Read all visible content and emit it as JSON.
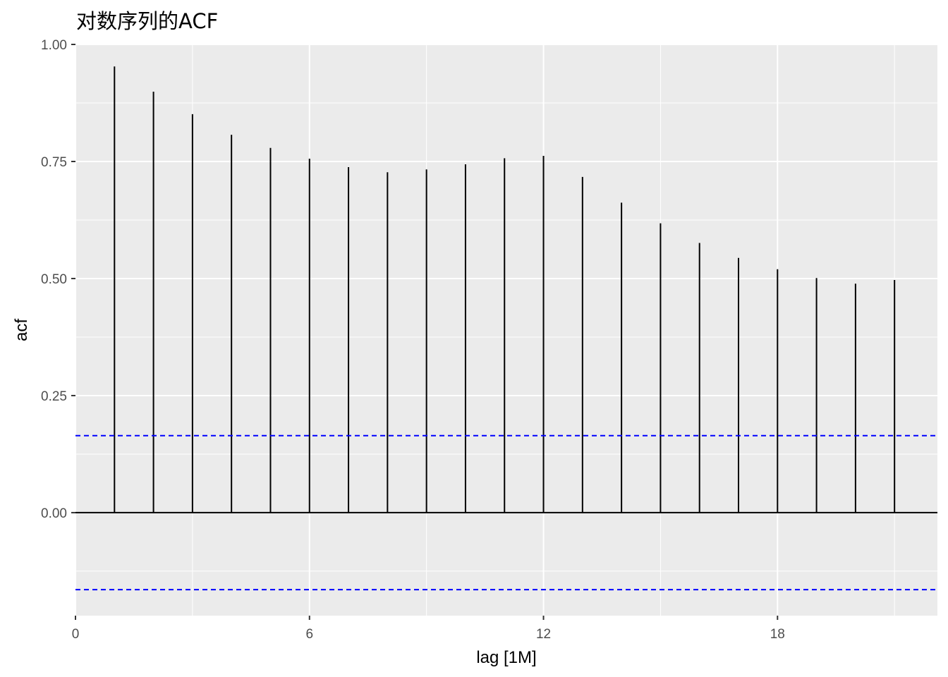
{
  "chart_data": {
    "type": "bar",
    "title": "对数序列的ACF",
    "xlabel": "lag [1M]",
    "ylabel": "acf",
    "x": [
      1,
      2,
      3,
      4,
      5,
      6,
      7,
      8,
      9,
      10,
      11,
      12,
      13,
      14,
      15,
      16,
      17,
      18,
      19,
      20,
      21
    ],
    "values": [
      0.953,
      0.899,
      0.851,
      0.807,
      0.779,
      0.756,
      0.738,
      0.727,
      0.733,
      0.744,
      0.757,
      0.762,
      0.717,
      0.662,
      0.618,
      0.576,
      0.544,
      0.52,
      0.501,
      0.489,
      0.497
    ],
    "confidence_bounds": [
      0.1645,
      -0.1645
    ],
    "xlim": [
      0,
      22.1
    ],
    "ylim": [
      -0.22,
      1.0
    ],
    "xticks": [
      0,
      6,
      12,
      18
    ],
    "xtick_labels": [
      "0",
      "6",
      "12",
      "18"
    ],
    "yticks": [
      0,
      0.25,
      0.5,
      0.75,
      1.0
    ],
    "ytick_labels": [
      "0.00",
      "0.25",
      "0.50",
      "0.75",
      "1.00"
    ],
    "grid": true,
    "colors": {
      "panel": "#ebebeb",
      "grid": "#ffffff",
      "spike": "#000000",
      "bound": "#0000ff"
    }
  }
}
